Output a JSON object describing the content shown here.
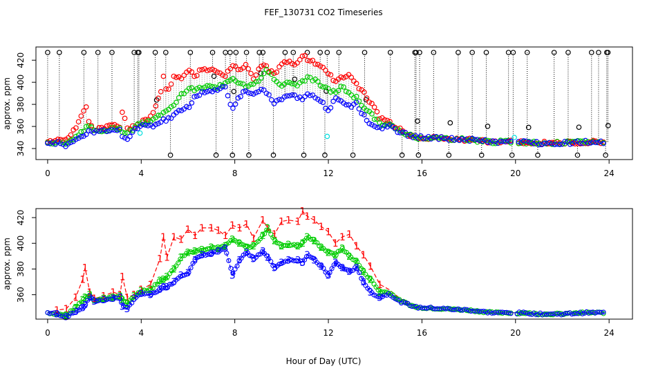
{
  "chart_data": [
    {
      "type": "scatter",
      "title": "FEF_130731  CO2 Timeseries",
      "xlabel": "",
      "ylabel": "approx. ppm",
      "xlim": [
        -0.5,
        25.0
      ],
      "ylim": [
        330,
        432
      ],
      "xticks": [
        "0",
        "4",
        "8",
        "12",
        "16",
        "20",
        "24"
      ],
      "yticks": [
        "340",
        "360",
        "380",
        "400",
        "420"
      ],
      "legend": "none",
      "series": [
        {
          "name": "black-flagged",
          "color": "#000000",
          "x": [
            0.0,
            0.5,
            1.55,
            2.15,
            2.75,
            3.7,
            3.85,
            3.9,
            4.6,
            5.05,
            5.25,
            6.1,
            7.05,
            7.2,
            7.6,
            7.8,
            7.9,
            8.05,
            8.5,
            8.6,
            9.05,
            9.2,
            9.65,
            10.15,
            10.5,
            10.95,
            11.1,
            11.65,
            11.85,
            11.95,
            12.45,
            13.05,
            13.55,
            14.65,
            15.15,
            15.7,
            15.75,
            15.85,
            15.9,
            16.5,
            17.15,
            17.55,
            18.15,
            18.55,
            18.75,
            19.7,
            19.85,
            19.9,
            20.5,
            20.95,
            21.65,
            22.25,
            22.65,
            23.25,
            23.55,
            23.85,
            23.9,
            23.95
          ]
        }
      ],
      "annotations": [
        "0",
        "4",
        "8",
        "12",
        "16",
        "20",
        "24"
      ]
    },
    {
      "type": "line",
      "title": "",
      "xlabel": "Hour of Day (UTC)",
      "ylabel": "approx. ppm",
      "xlim": [
        -0.5,
        25.0
      ],
      "ylim": [
        341,
        427
      ],
      "xticks": [
        "0",
        "4",
        "8",
        "12",
        "16",
        "20",
        "24"
      ],
      "yticks": [
        "360",
        "380",
        "400",
        "420"
      ],
      "legend": "none",
      "series": [
        {
          "name": "1",
          "color": "#ff0000"
        },
        {
          "name": "2",
          "color": "#00cc00"
        },
        {
          "name": "3",
          "color": "#0000ff"
        }
      ],
      "curve": {
        "note": "common data for both panels: hour, series-1 (red), series-2 (green), series-3 (blue) in ppm",
        "x": [
          0.0,
          0.4,
          0.8,
          1.2,
          1.5,
          1.6,
          1.8,
          2.0,
          2.4,
          2.8,
          3.1,
          3.2,
          3.4,
          3.7,
          4.0,
          4.4,
          4.8,
          4.95,
          5.1,
          5.4,
          5.7,
          6.0,
          6.3,
          6.6,
          7.0,
          7.3,
          7.6,
          7.9,
          8.2,
          8.5,
          8.8,
          9.2,
          9.4,
          9.7,
          10.0,
          10.3,
          10.7,
          10.9,
          11.1,
          11.4,
          11.7,
          12.0,
          12.3,
          12.6,
          12.9,
          13.2,
          13.5,
          13.8,
          14.2,
          14.6,
          15.0,
          15.5,
          15.8,
          16.0,
          17.0,
          18.0,
          19.0,
          19.8,
          20.0,
          20.2,
          21.0,
          22.0,
          23.0,
          23.8
        ],
        "r": [
          346,
          348,
          349,
          358,
          372,
          381,
          362,
          357,
          359,
          362,
          360,
          374,
          358,
          360,
          364,
          368,
          388,
          405,
          389,
          405,
          403,
          411,
          406,
          412,
          412,
          410,
          406,
          414,
          412,
          415,
          404,
          418,
          412,
          407,
          417,
          418,
          417,
          425,
          421,
          418,
          413,
          409,
          400,
          405,
          407,
          398,
          391,
          382,
          368,
          364,
          358,
          352,
          350,
          350,
          349,
          348,
          346,
          346,
          345,
          346,
          345,
          345,
          346,
          346
        ],
        "g": [
          346,
          345,
          344,
          350,
          356,
          358,
          360,
          355,
          357,
          358,
          359,
          356,
          353,
          359,
          363,
          364,
          371,
          372,
          374,
          380,
          389,
          393,
          394,
          395,
          397,
          396,
          398,
          403,
          400,
          397,
          398,
          406,
          412,
          402,
          398,
          399,
          398,
          400,
          405,
          402,
          397,
          393,
          391,
          396,
          390,
          386,
          378,
          372,
          362,
          362,
          356,
          352,
          350,
          350,
          349,
          348,
          346,
          346,
          345,
          346,
          345,
          345,
          346,
          346
        ],
        "b": [
          346,
          345,
          343,
          347,
          350,
          352,
          358,
          355,
          356,
          357,
          358,
          351,
          349,
          357,
          361,
          360,
          364,
          366,
          366,
          370,
          375,
          377,
          387,
          391,
          392,
          394,
          396,
          375,
          387,
          393,
          388,
          394,
          389,
          381,
          385,
          387,
          387,
          385,
          391,
          387,
          382,
          375,
          385,
          381,
          378,
          381,
          370,
          362,
          358,
          361,
          355,
          352,
          350,
          350,
          349,
          348,
          346,
          346,
          345,
          346,
          345,
          345,
          346,
          346
        ]
      }
    }
  ]
}
